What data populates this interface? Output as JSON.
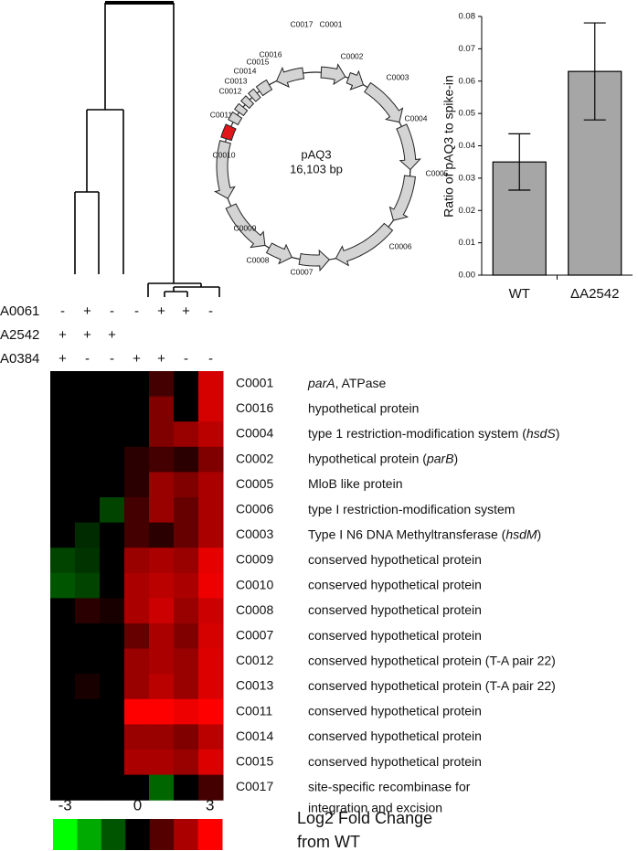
{
  "chart_data": [
    {
      "type": "heatmap",
      "categories": [
        "C0001",
        "C0016",
        "C0004",
        "C0002",
        "C0005",
        "C0006",
        "C0003",
        "C0009",
        "C0010",
        "C0008",
        "C0007",
        "C0012",
        "C0013",
        "C0011",
        "C0014",
        "C0015",
        "C0017"
      ],
      "row_descriptions": [
        [
          [
            {
              "text": "parA",
              "italic": true
            },
            ", ATPase"
          ]
        ],
        [
          [
            "hypothetical protein"
          ]
        ],
        [
          [
            "type 1 restriction-modification system (",
            {
              "text": "hsdS",
              "italic": true
            },
            ")"
          ]
        ],
        [
          [
            "hypothetical protein (",
            {
              "text": "parB",
              "italic": true
            },
            ")"
          ]
        ],
        [
          [
            "MloB like protein"
          ]
        ],
        [
          [
            "type I  restriction-modification system"
          ]
        ],
        [
          [
            "Type I N6 DNA Methyltransferase (",
            {
              "text": "hsdM",
              "italic": true
            },
            ")"
          ]
        ],
        [
          [
            "conserved hypothetical protein"
          ]
        ],
        [
          [
            "conserved hypothetical protein"
          ]
        ],
        [
          [
            "conserved hypothetical protein"
          ]
        ],
        [
          [
            "conserved hypothetical protein"
          ]
        ],
        [
          [
            "conserved hypothetical protein (T-A pair 22)"
          ]
        ],
        [
          [
            "conserved hypothetical protein (T-A pair 22)"
          ]
        ],
        [
          [
            "conserved hypothetical protein"
          ]
        ],
        [
          [
            "conserved hypothetical protein"
          ]
        ],
        [
          [
            "conserved hypothetical protein"
          ]
        ],
        [
          [
            "site-specific recombinase for"
          ],
          [
            "integration and excision"
          ]
        ]
      ],
      "values": [
        [
          0,
          0,
          0,
          0,
          0.8,
          0,
          2.5
        ],
        [
          0,
          0,
          0,
          0,
          1.5,
          0,
          2.5
        ],
        [
          0,
          0,
          0,
          0,
          1.5,
          1.8,
          2.2
        ],
        [
          0,
          0,
          0,
          0.5,
          0.8,
          0.5,
          1.5
        ],
        [
          0,
          0,
          0,
          0.5,
          1.8,
          1.5,
          2
        ],
        [
          0,
          0,
          -0.8,
          0.8,
          1.8,
          1.2,
          2
        ],
        [
          0,
          -0.5,
          0,
          0.8,
          0.5,
          1.2,
          2
        ],
        [
          -0.8,
          -0.6,
          0,
          1.8,
          2,
          1.8,
          2.7
        ],
        [
          -1,
          -0.8,
          0,
          2,
          2.2,
          2,
          2.8
        ],
        [
          0,
          0.5,
          0.3,
          2,
          2.4,
          1.8,
          2.4
        ],
        [
          0,
          0,
          0,
          1.2,
          2,
          1.5,
          2.5
        ],
        [
          0,
          0,
          0,
          1.8,
          2,
          1.8,
          2.6
        ],
        [
          0,
          0.3,
          0,
          1.8,
          2.2,
          1.8,
          2.6
        ],
        [
          0,
          0,
          0,
          3,
          3,
          2.8,
          3
        ],
        [
          0,
          0,
          0,
          1.8,
          1.8,
          1.5,
          2.2
        ],
        [
          0,
          0,
          0,
          2,
          2,
          1.8,
          2.6
        ],
        [
          0,
          0,
          0,
          0,
          -1.2,
          0,
          0.8
        ]
      ],
      "genotypes": [
        {
          "name": "A0061",
          "signs": [
            "-",
            "+",
            "-",
            "-",
            "+",
            "+",
            "-"
          ]
        },
        {
          "name": "A2542",
          "signs": [
            "+",
            "+",
            "+",
            null,
            null,
            null,
            null
          ]
        },
        {
          "name": "A0384",
          "signs": [
            "+",
            "-",
            "-",
            "+",
            "+",
            "-",
            "-"
          ]
        }
      ],
      "color_min": "#00ff00",
      "color_max": "#ff0000",
      "color_zero": "#000000",
      "clim": [
        -3,
        3
      ],
      "legend_steps": [
        -3,
        -2,
        -1,
        0,
        1,
        2,
        3
      ],
      "legend_ticks": [
        -3,
        0,
        3
      ],
      "legend_title": [
        "Log2 Fold Change",
        "from WT"
      ]
    },
    {
      "type": "bar",
      "categories": [
        "WT",
        "ΔA2542"
      ],
      "values": [
        0.035,
        0.063
      ],
      "errors": [
        0.0087,
        0.015
      ],
      "color": "#a6a6a6",
      "ylabel": "Ratio of pAQ3 to spike-in",
      "ylim": [
        0,
        0.08
      ],
      "yticks": [
        {
          "value": 0,
          "label": "0.00"
        },
        {
          "value": 0.01,
          "label": "0.01"
        },
        {
          "value": 0.02,
          "label": "0.02"
        },
        {
          "value": 0.03,
          "label": "0.03"
        },
        {
          "value": 0.04,
          "label": "0.04"
        },
        {
          "value": 0.05,
          "label": "0.05"
        },
        {
          "value": 0.06,
          "label": "0.06"
        },
        {
          "value": 0.07,
          "label": "0.07"
        },
        {
          "value": 0.08,
          "label": "0.08"
        }
      ]
    }
  ],
  "plasmid": {
    "name": "pAQ3",
    "size": "16,103 bp",
    "genes": [
      "C0001",
      "C0002",
      "C0003",
      "C0004",
      "C0005",
      "C0006",
      "C0007",
      "C0008",
      "C0009",
      "C0010",
      "C0011",
      "C0012",
      "C0013",
      "C0014",
      "C0015",
      "C0016",
      "C0017"
    ],
    "highlighted": "C0011",
    "highlight_color": "#e0161b",
    "gene_color": "#d4d4d4"
  }
}
